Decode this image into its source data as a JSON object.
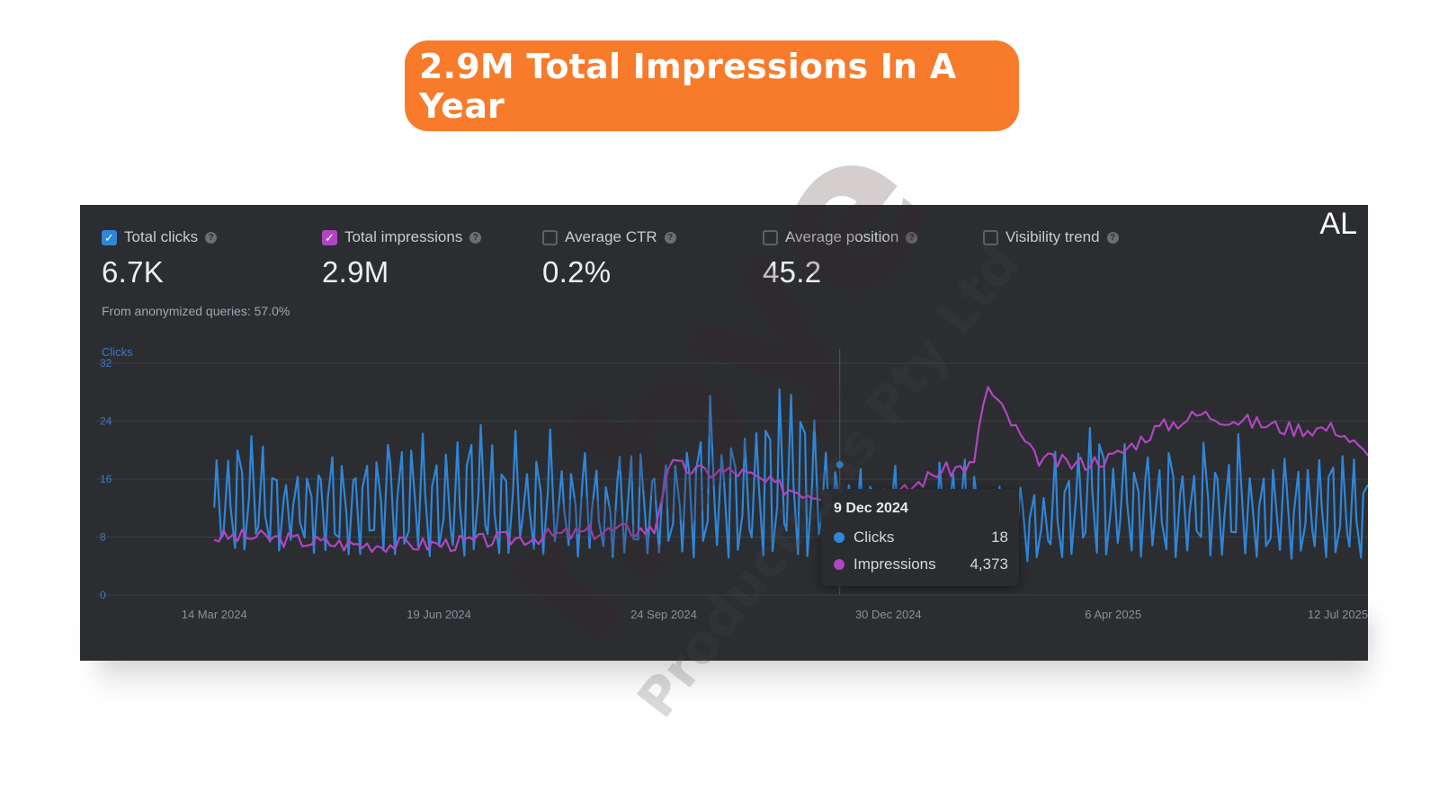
{
  "banner": {
    "title": "2.9M Total Impressions In A Year"
  },
  "corner_text": "AL",
  "metrics": [
    {
      "label": "Total clicks",
      "value": "6.7K",
      "checked": true,
      "color": "#2f86d8"
    },
    {
      "label": "Total impressions",
      "value": "2.9M",
      "checked": true,
      "color": "#b046c2"
    },
    {
      "label": "Average CTR",
      "value": "0.2%",
      "checked": false,
      "color": "#5d6068"
    },
    {
      "label": "Average position",
      "value": "45.2",
      "checked": false,
      "color": "#5d6068"
    },
    {
      "label": "Visibility trend",
      "value": "",
      "checked": false,
      "color": "#5d6068"
    }
  ],
  "anonymized_note": "From anonymized queries: 57.0%",
  "tooltip": {
    "date": "9 Dec 2024",
    "rows": [
      {
        "label": "Clicks",
        "value": "18",
        "color": "#2f86d8"
      },
      {
        "label": "Impressions",
        "value": "4,373",
        "color": "#b046c2"
      }
    ]
  },
  "watermark": {
    "main": "nbye",
    "sub": "Productions Pty Ltd"
  },
  "colors": {
    "clicks": "#2f86d8",
    "impressions": "#b046c2",
    "grid": "#3e4046",
    "tick": "#8d9098",
    "accent": "#f77b2a"
  },
  "chart_data": {
    "type": "line",
    "ylabel": "Clicks",
    "yticks": [
      0,
      8,
      16,
      24,
      32
    ],
    "ylim": [
      0,
      34
    ],
    "xlim": [
      "2024-02-20",
      "2025-07-25"
    ],
    "xticks": [
      "14 Mar 2024",
      "19 Jun 2024",
      "24 Sep 2024",
      "30 Dec 2024",
      "6 Apr 2025",
      "12 Jul 2025"
    ],
    "xtick_dates": [
      "2024-03-14",
      "2024-06-19",
      "2024-09-24",
      "2024-12-30",
      "2025-04-06",
      "2025-07-12"
    ],
    "grid": true,
    "series": [
      {
        "name": "Clicks",
        "x": [
          "2024-03-14",
          "2024-04-01",
          "2024-04-20",
          "2024-05-10",
          "2024-05-30",
          "2024-06-19",
          "2024-07-09",
          "2024-07-29",
          "2024-08-18",
          "2024-09-07",
          "2024-09-24",
          "2024-10-10",
          "2024-10-26",
          "2024-11-12",
          "2024-11-28",
          "2024-12-09",
          "2024-12-30",
          "2025-01-20",
          "2025-02-10",
          "2025-03-03",
          "2025-03-20",
          "2025-04-06",
          "2025-04-25",
          "2025-05-14",
          "2025-06-02",
          "2025-06-21",
          "2025-07-12",
          "2025-07-20"
        ],
        "peak": [
          22,
          25,
          23,
          24,
          26,
          24,
          25,
          26,
          24,
          23,
          26,
          28,
          29,
          30,
          28,
          18,
          20,
          21,
          20,
          19,
          24,
          25,
          23,
          24,
          23,
          22,
          24,
          22
        ],
        "trough": [
          3,
          3,
          3,
          2,
          2,
          2,
          2,
          2,
          2,
          2,
          2,
          1,
          1,
          1,
          1,
          4,
          3,
          3,
          3,
          2,
          2,
          2,
          2,
          2,
          2,
          2,
          2,
          2
        ]
      },
      {
        "name": "Impressions",
        "x": [
          "2024-03-14",
          "2024-04-01",
          "2024-04-20",
          "2024-05-10",
          "2024-05-30",
          "2024-06-19",
          "2024-07-09",
          "2024-07-29",
          "2024-08-18",
          "2024-09-07",
          "2024-09-20",
          "2024-09-26",
          "2024-10-10",
          "2024-10-26",
          "2024-11-12",
          "2024-11-28",
          "2024-12-09",
          "2024-12-30",
          "2025-01-20",
          "2025-02-05",
          "2025-02-10",
          "2025-03-03",
          "2025-03-20",
          "2025-04-06",
          "2025-04-25",
          "2025-05-14",
          "2025-06-02",
          "2025-06-21",
          "2025-07-12",
          "2025-07-25"
        ],
        "y_clicks_axis": [
          8,
          8,
          7.5,
          7,
          7,
          7,
          7.5,
          8,
          8.5,
          9,
          9,
          18,
          17,
          17,
          15,
          14,
          14,
          13,
          17,
          18,
          29,
          19,
          18,
          19,
          23,
          25,
          24,
          23,
          23,
          19
        ]
      }
    ]
  }
}
